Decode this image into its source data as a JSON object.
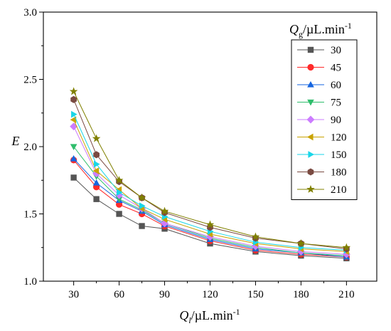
{
  "chart_data": {
    "type": "line",
    "xlabel": "Q_l/µL.min⁻¹",
    "ylabel": "E",
    "legend_title": "Q_g/µL.min⁻¹",
    "legend_position": "top-right",
    "x": [
      30,
      45,
      60,
      75,
      90,
      120,
      150,
      180,
      210
    ],
    "xticks": [
      30,
      60,
      90,
      120,
      150,
      180,
      210
    ],
    "xlim": [
      10,
      230
    ],
    "yticks": [
      1.0,
      1.5,
      2.0,
      2.5,
      3.0
    ],
    "ylim": [
      1.0,
      3.0
    ],
    "grid": false,
    "series": [
      {
        "name": "30",
        "color": "#555555",
        "marker": "square",
        "values": [
          1.77,
          1.61,
          1.5,
          1.41,
          1.39,
          1.28,
          1.22,
          1.19,
          1.17
        ]
      },
      {
        "name": "45",
        "color": "#ff2a2a",
        "marker": "circle",
        "values": [
          1.9,
          1.7,
          1.57,
          1.5,
          1.41,
          1.3,
          1.23,
          1.2,
          1.18
        ]
      },
      {
        "name": "60",
        "color": "#1565e0",
        "marker": "triangle-up",
        "values": [
          1.91,
          1.73,
          1.6,
          1.52,
          1.42,
          1.31,
          1.24,
          1.21,
          1.18
        ]
      },
      {
        "name": "75",
        "color": "#2ebd6b",
        "marker": "triangle-down",
        "values": [
          2.0,
          1.78,
          1.61,
          1.53,
          1.43,
          1.32,
          1.25,
          1.21,
          1.19
        ]
      },
      {
        "name": "90",
        "color": "#cc7cff",
        "marker": "diamond",
        "values": [
          2.15,
          1.8,
          1.64,
          1.54,
          1.43,
          1.33,
          1.26,
          1.22,
          1.2
        ]
      },
      {
        "name": "120",
        "color": "#c9a300",
        "marker": "triangle-left",
        "values": [
          2.2,
          1.82,
          1.68,
          1.54,
          1.46,
          1.35,
          1.28,
          1.24,
          1.22
        ]
      },
      {
        "name": "150",
        "color": "#19d6e8",
        "marker": "triangle-right",
        "values": [
          2.24,
          1.87,
          1.66,
          1.56,
          1.48,
          1.37,
          1.29,
          1.25,
          1.23
        ]
      },
      {
        "name": "180",
        "color": "#7a4a41",
        "marker": "hexagon",
        "values": [
          2.35,
          1.94,
          1.74,
          1.62,
          1.51,
          1.4,
          1.32,
          1.28,
          1.24
        ]
      },
      {
        "name": "210",
        "color": "#808000",
        "marker": "star",
        "values": [
          2.41,
          2.06,
          1.75,
          1.62,
          1.52,
          1.42,
          1.33,
          1.28,
          1.25
        ]
      }
    ]
  }
}
